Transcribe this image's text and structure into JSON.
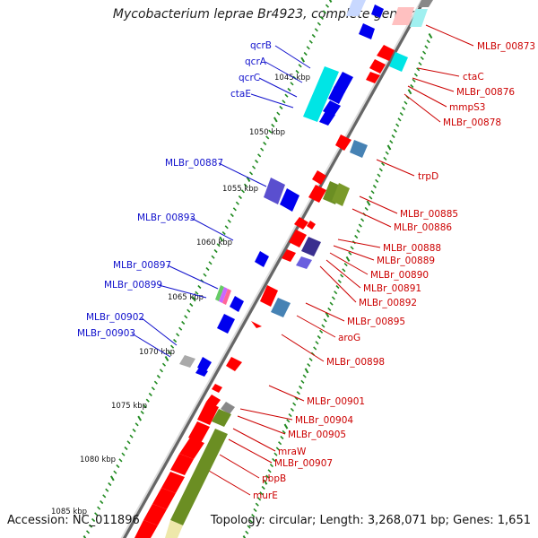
{
  "title": "Mycobacterium leprae Br4923, complete genome",
  "footer": {
    "accession": "Accession: NC_011896",
    "summary": "Topology: circular; Length: 3,268,071 bp; Genes: 1,651"
  },
  "kbp_ticks": [
    "1045 kbp",
    "1050 kbp",
    "1055 kbp",
    "1060 kbp",
    "1065 kbp",
    "1070 kbp",
    "1075 kbp",
    "1080 kbp",
    "1085 kbp"
  ],
  "genes_left": [
    "qcrB",
    "qcrA",
    "qcrC",
    "ctaE",
    "MLBr_00887",
    "MLBr_00893",
    "MLBr_00897",
    "MLBr_00899",
    "MLBr_00902",
    "MLBr_00903"
  ],
  "genes_right": [
    "MLBr_00873",
    "ctaC",
    "MLBr_00876",
    "mmpS3",
    "MLBr_00878",
    "trpD",
    "MLBr_00885",
    "MLBr_00886",
    "MLBr_00888",
    "MLBr_00889",
    "MLBr_00890",
    "MLBr_00891",
    "MLBr_00892",
    "MLBr_00895",
    "aroG",
    "MLBr_00898",
    "MLBr_00901",
    "MLBr_00904",
    "MLBr_00905",
    "mraW",
    "MLBr_00907",
    "pbpB",
    "murE"
  ],
  "colors": {
    "backbone": "#999999",
    "forward": "#ff0000",
    "reverse": "#0000ee",
    "cyan": "#00e5e5",
    "olive": "#6b8e23",
    "purple": "#5a4fcf",
    "steel": "#4682b4",
    "khaki": "#eee8aa",
    "tick": "#228b22"
  }
}
